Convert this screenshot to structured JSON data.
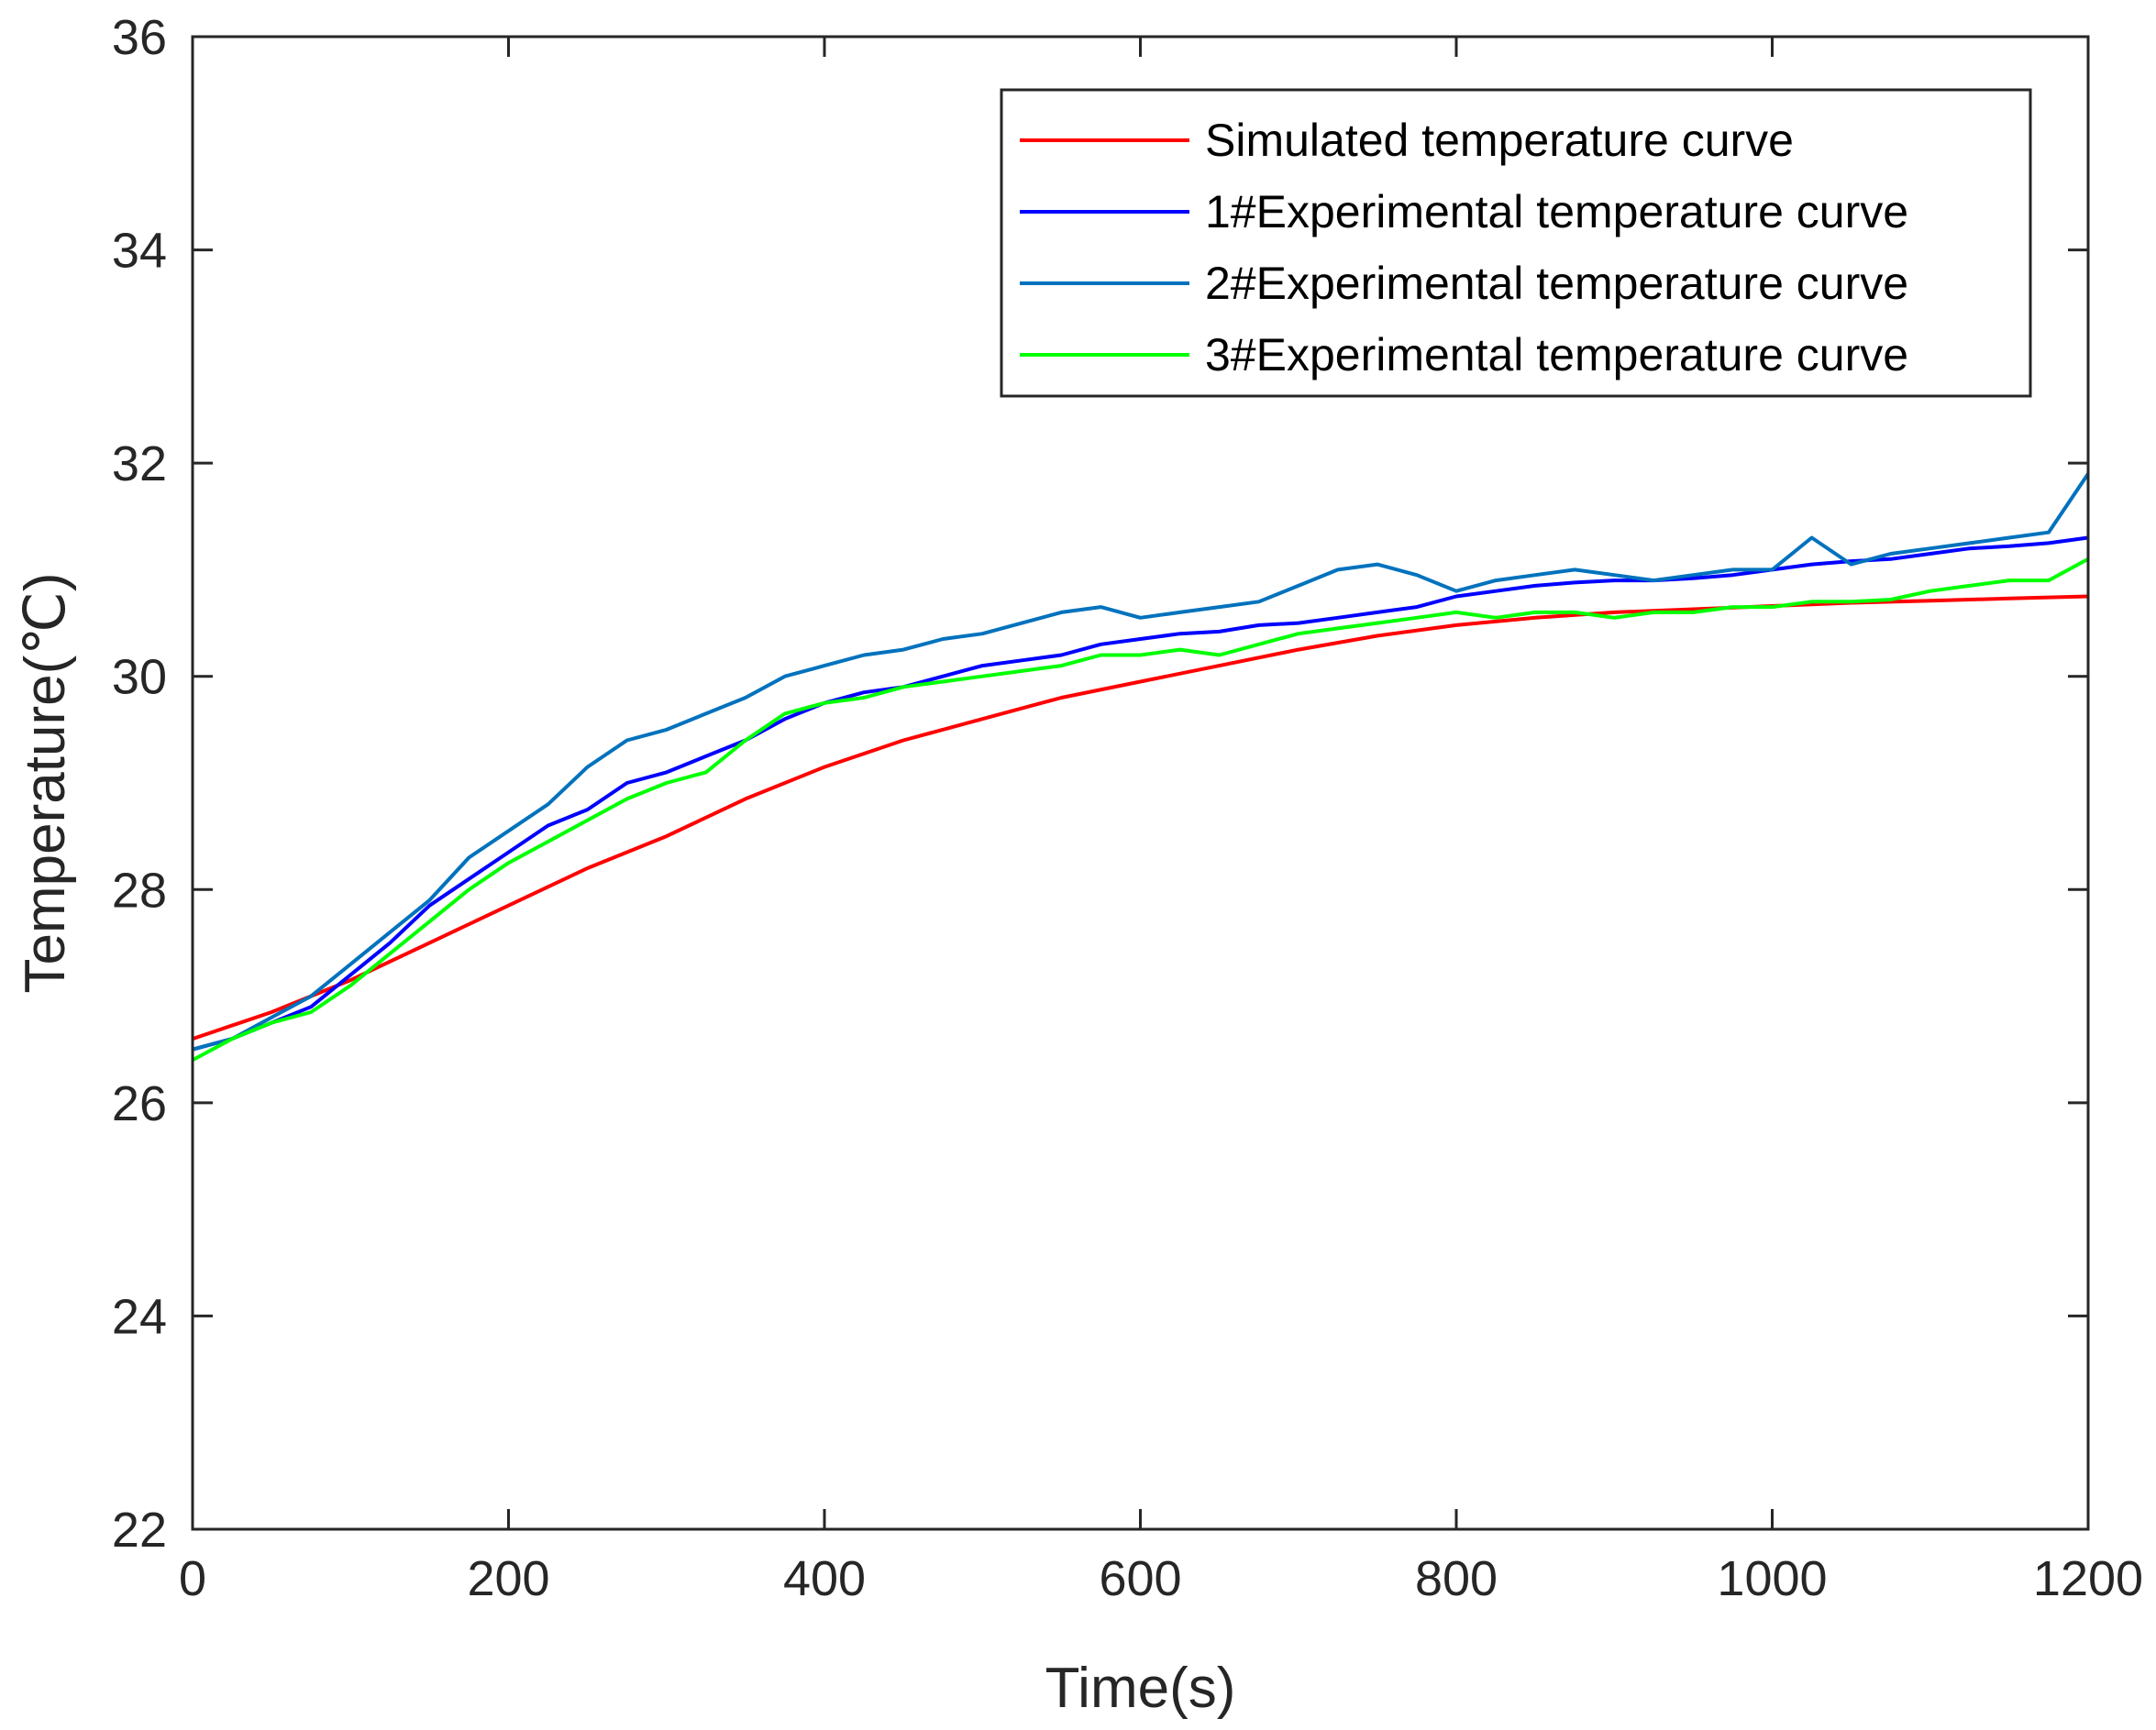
{
  "chart_data": {
    "type": "line",
    "title": "",
    "xlabel": "Time(s)",
    "ylabel": "Temperature(℃)",
    "xlim": [
      0,
      1200
    ],
    "ylim": [
      22,
      36
    ],
    "xticks": [
      0,
      200,
      400,
      600,
      800,
      1000,
      1200
    ],
    "yticks": [
      22,
      24,
      26,
      28,
      30,
      32,
      34,
      36
    ],
    "xtick_labels": [
      "0",
      "200",
      "400",
      "600",
      "800",
      "1000",
      "1200"
    ],
    "ytick_labels": [
      "22",
      "24",
      "26",
      "28",
      "30",
      "32",
      "34",
      "36"
    ],
    "grid": false,
    "legend_position": "top-right",
    "series": [
      {
        "name": "Simulated temperature curve",
        "color": "#ff0000",
        "x": [
          0,
          50,
          100,
          150,
          200,
          250,
          300,
          350,
          400,
          450,
          500,
          550,
          600,
          650,
          700,
          750,
          800,
          850,
          900,
          950,
          1000,
          1050,
          1100,
          1150,
          1200
        ],
        "y": [
          26.6,
          26.85,
          27.15,
          27.5,
          27.85,
          28.2,
          28.5,
          28.85,
          29.15,
          29.4,
          29.6,
          29.8,
          29.95,
          30.1,
          30.25,
          30.38,
          30.48,
          30.55,
          30.6,
          30.63,
          30.66,
          30.69,
          30.71,
          30.73,
          30.75
        ]
      },
      {
        "name": "1#Experimental temperature curve",
        "color": "#0000ff",
        "x": [
          0,
          25,
          50,
          75,
          100,
          125,
          150,
          175,
          200,
          225,
          250,
          275,
          300,
          325,
          350,
          375,
          400,
          425,
          450,
          475,
          500,
          525,
          550,
          575,
          600,
          625,
          650,
          675,
          700,
          725,
          750,
          775,
          800,
          825,
          850,
          875,
          900,
          925,
          950,
          975,
          1000,
          1025,
          1050,
          1075,
          1100,
          1125,
          1150,
          1175,
          1200
        ],
        "y": [
          26.5,
          26.6,
          26.75,
          26.9,
          27.2,
          27.5,
          27.85,
          28.1,
          28.35,
          28.6,
          28.75,
          29.0,
          29.1,
          29.25,
          29.4,
          29.6,
          29.75,
          29.85,
          29.9,
          30.0,
          30.1,
          30.15,
          30.2,
          30.3,
          30.35,
          30.4,
          30.42,
          30.48,
          30.5,
          30.55,
          30.6,
          30.65,
          30.75,
          30.8,
          30.85,
          30.88,
          30.9,
          30.9,
          30.92,
          30.95,
          31.0,
          31.05,
          31.08,
          31.1,
          31.15,
          31.2,
          31.22,
          31.25,
          31.3
        ]
      },
      {
        "name": "2#Experimental temperature curve",
        "color": "#0072bd",
        "x": [
          0,
          25,
          50,
          75,
          100,
          125,
          150,
          175,
          200,
          225,
          250,
          275,
          300,
          325,
          350,
          375,
          400,
          425,
          450,
          475,
          500,
          525,
          550,
          575,
          600,
          625,
          650,
          675,
          700,
          725,
          750,
          775,
          800,
          825,
          850,
          875,
          900,
          925,
          950,
          975,
          1000,
          1025,
          1050,
          1075,
          1100,
          1125,
          1150,
          1175,
          1200
        ],
        "y": [
          26.5,
          26.6,
          26.8,
          27.0,
          27.3,
          27.6,
          27.9,
          28.3,
          28.55,
          28.8,
          29.15,
          29.4,
          29.5,
          29.65,
          29.8,
          30.0,
          30.1,
          30.2,
          30.25,
          30.35,
          30.4,
          30.5,
          30.6,
          30.65,
          30.55,
          30.6,
          30.65,
          30.7,
          30.85,
          31.0,
          31.05,
          30.95,
          30.8,
          30.9,
          30.95,
          31.0,
          30.95,
          30.9,
          30.95,
          31.0,
          31.0,
          31.3,
          31.05,
          31.15,
          31.2,
          31.25,
          31.3,
          31.35,
          31.9
        ]
      },
      {
        "name": "3#Experimental temperature curve",
        "color": "#00ff00",
        "x": [
          0,
          25,
          50,
          75,
          100,
          125,
          150,
          175,
          200,
          225,
          250,
          275,
          300,
          325,
          350,
          375,
          400,
          425,
          450,
          475,
          500,
          525,
          550,
          575,
          600,
          625,
          650,
          675,
          700,
          725,
          750,
          775,
          800,
          825,
          850,
          875,
          900,
          925,
          950,
          975,
          1000,
          1025,
          1050,
          1075,
          1100,
          1125,
          1150,
          1175,
          1200
        ],
        "y": [
          26.4,
          26.6,
          26.75,
          26.85,
          27.1,
          27.4,
          27.7,
          28.0,
          28.25,
          28.45,
          28.65,
          28.85,
          29.0,
          29.1,
          29.4,
          29.65,
          29.75,
          29.8,
          29.9,
          29.95,
          30.0,
          30.05,
          30.1,
          30.2,
          30.2,
          30.25,
          30.2,
          30.3,
          30.4,
          30.45,
          30.5,
          30.55,
          30.6,
          30.55,
          30.6,
          30.6,
          30.55,
          30.6,
          30.6,
          30.65,
          30.65,
          30.7,
          30.7,
          30.72,
          30.8,
          30.85,
          30.9,
          30.9,
          31.1
        ]
      }
    ]
  }
}
